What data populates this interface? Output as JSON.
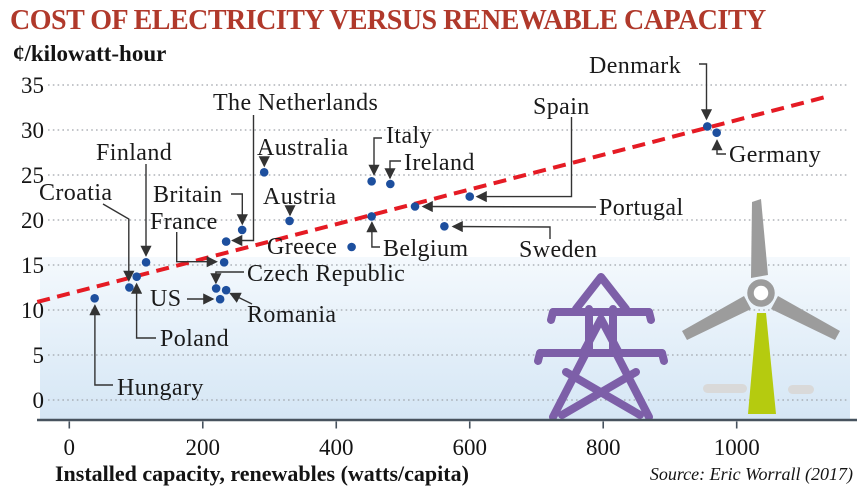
{
  "page": {
    "title": "COST OF ELECTRICITY VERSUS RENEWABLE CAPACITY",
    "y_axis_unit": "¢/kilowatt-hour",
    "x_axis_label": "Installed capacity, renewables (watts/capita)",
    "source": "Source: Eric Worrall (2017)"
  },
  "colors": {
    "title": "#b0392b",
    "highlight_label": "#b0392b",
    "label": "#1a1a1a",
    "point": "#1d4f9e",
    "trend": "#e51b24",
    "connector": "#333333",
    "grid": "#a0a5ab",
    "axis": "#47525e",
    "band_top": "#f4f9fd",
    "band_bottom": "#d5e6f5",
    "tower_icon": "#7d5fa8",
    "turbine_icon": "#9c9c9c",
    "turbine_mast": "#b5cb0f",
    "ground_dash": "#d9d9d9"
  },
  "icons": {
    "left": "transmission-tower-icon",
    "right": "wind-turbine-icon"
  },
  "chart_data": {
    "type": "scatter",
    "title": "COST OF ELECTRICITY VERSUS RENEWABLE CAPACITY",
    "xlabel": "Installed capacity, renewables (watts/capita)",
    "ylabel": "¢/kilowatt-hour",
    "xlim": [
      -50,
      1180
    ],
    "ylim": [
      -2,
      36
    ],
    "xticks": [
      0,
      200,
      400,
      600,
      800,
      1000
    ],
    "yticks": [
      0,
      5,
      10,
      15,
      20,
      25,
      30,
      35
    ],
    "grid": "horizontal-dotted",
    "legend": false,
    "points": [
      {
        "label": "Hungary",
        "x": 38,
        "y": 11.3
      },
      {
        "label": "Croatia",
        "x": 90,
        "y": 12.5
      },
      {
        "label": "Poland",
        "x": 101,
        "y": 13.7
      },
      {
        "label": "Finland",
        "x": 115,
        "y": 15.3
      },
      {
        "label": "US",
        "x": 226,
        "y": 11.2
      },
      {
        "label": "Czech Republic",
        "x": 220,
        "y": 12.4
      },
      {
        "label": "Romania",
        "x": 235,
        "y": 12.2
      },
      {
        "label": "France",
        "x": 232,
        "y": 15.3
      },
      {
        "label": "The Netherlands",
        "x": 235,
        "y": 17.6
      },
      {
        "label": "Britain",
        "x": 259,
        "y": 18.9
      },
      {
        "label": "Australia",
        "x": 292,
        "y": 25.3,
        "highlighted": true
      },
      {
        "label": "Austria",
        "x": 330,
        "y": 19.9
      },
      {
        "label": "Greece",
        "x": 423,
        "y": 17
      },
      {
        "label": "Italy",
        "x": 453,
        "y": 24.3
      },
      {
        "label": "Belgium",
        "x": 453,
        "y": 20.4
      },
      {
        "label": "Ireland",
        "x": 481,
        "y": 24
      },
      {
        "label": "Portugal",
        "x": 518,
        "y": 21.5
      },
      {
        "label": "Sweden",
        "x": 562,
        "y": 19.3
      },
      {
        "label": "Spain",
        "x": 600,
        "y": 22.6
      },
      {
        "label": "Denmark",
        "x": 956,
        "y": 30.4
      },
      {
        "label": "Germany",
        "x": 970,
        "y": 29.7
      }
    ],
    "trendline": {
      "x1": -48,
      "y1": 10.9,
      "x2": 1140,
      "y2": 33.8,
      "style": "dashed"
    }
  }
}
